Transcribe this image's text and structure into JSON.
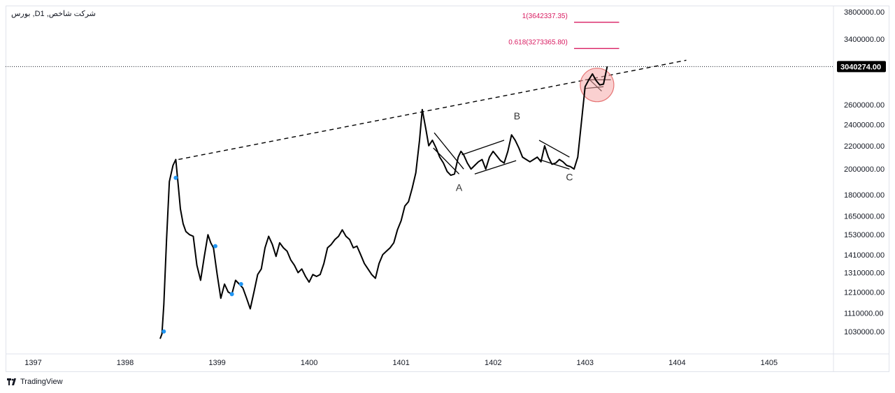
{
  "header": {
    "title": "بورس ,Dشرکت شاخص, 1"
  },
  "footer": {
    "brand": "TradingView",
    "brand_icon": "tradingview-logo-icon"
  },
  "colors": {
    "price_line": "#000000",
    "fib_line": "#d81b60",
    "marker": "#2196f3",
    "highlight_fill": "#f5a9a9",
    "highlight_stroke": "#e57373",
    "grid": "#e0e3eb"
  },
  "chart_data": {
    "type": "line",
    "scale": "log",
    "ylim": [
      940000,
      3900000
    ],
    "xlim": [
      1396.7,
      1405.7
    ],
    "y_ticks": [
      3800000,
      3400000,
      2600000,
      2400000,
      2200000,
      2000000,
      1800000,
      1650000,
      1530000,
      1410000,
      1310000,
      1210000,
      1110000,
      1030000
    ],
    "y_tick_labels": [
      "3800000.00",
      "3400000.00",
      "2600000.00",
      "2400000.00",
      "2200000.00",
      "2000000.00",
      "1800000.00",
      "1650000.00",
      "1530000.00",
      "1410000.00",
      "1310000.00",
      "1210000.00",
      "1110000.00",
      "1030000.00"
    ],
    "x_ticks": [
      1397,
      1398,
      1399,
      1400,
      1401,
      1402,
      1403,
      1404,
      1405
    ],
    "x_tick_labels": [
      "1397",
      "1398",
      "1399",
      "1400",
      "1401",
      "1402",
      "1403",
      "1404",
      "1405"
    ],
    "last_price": {
      "value": 3040274,
      "label": "3040274.00"
    },
    "series": [
      {
        "x": [
          1398.38,
          1398.4,
          1398.42,
          1398.45,
          1398.48,
          1398.52,
          1398.55,
          1398.58,
          1398.6,
          1398.63,
          1398.66,
          1398.7,
          1398.74,
          1398.78,
          1398.82,
          1398.86,
          1398.9,
          1398.93,
          1398.96,
          1399.0,
          1399.04,
          1399.08,
          1399.12,
          1399.16,
          1399.2,
          1399.24,
          1399.28,
          1399.32,
          1399.36,
          1399.4,
          1399.44,
          1399.48,
          1399.52,
          1399.56,
          1399.6,
          1399.64,
          1399.68,
          1399.72,
          1399.76,
          1399.8,
          1399.84,
          1399.88,
          1399.92,
          1399.96,
          1400.0,
          1400.04,
          1400.08,
          1400.12,
          1400.16,
          1400.2,
          1400.24,
          1400.28,
          1400.32,
          1400.36,
          1400.4,
          1400.44,
          1400.48,
          1400.52,
          1400.56,
          1400.6,
          1400.64,
          1400.68,
          1400.72,
          1400.76,
          1400.8,
          1400.84,
          1400.88,
          1400.92,
          1400.96,
          1401.0,
          1401.04,
          1401.08,
          1401.12,
          1401.16,
          1401.2,
          1401.23,
          1401.27,
          1401.3,
          1401.34,
          1401.38,
          1401.42,
          1401.46,
          1401.5,
          1401.54,
          1401.58,
          1401.62,
          1401.65,
          1401.68,
          1401.72,
          1401.76,
          1401.8,
          1401.84,
          1401.88,
          1401.92,
          1401.96,
          1402.0,
          1402.04,
          1402.08,
          1402.12,
          1402.16,
          1402.2,
          1402.24,
          1402.28,
          1402.32,
          1402.36,
          1402.4,
          1402.44,
          1402.48,
          1402.52,
          1402.56,
          1402.6,
          1402.64,
          1402.68,
          1402.72,
          1402.76,
          1402.8,
          1402.84,
          1402.88,
          1402.92,
          1402.96,
          1403.0,
          1403.04,
          1403.08,
          1403.12,
          1403.16,
          1403.2,
          1403.24
        ],
        "y": [
          1000000,
          1020000,
          1150000,
          1500000,
          1900000,
          2030000,
          2080000,
          1850000,
          1700000,
          1600000,
          1550000,
          1530000,
          1520000,
          1350000,
          1270000,
          1400000,
          1530000,
          1480000,
          1450000,
          1300000,
          1180000,
          1250000,
          1210000,
          1200000,
          1270000,
          1250000,
          1230000,
          1180000,
          1130000,
          1210000,
          1300000,
          1330000,
          1450000,
          1520000,
          1470000,
          1400000,
          1480000,
          1450000,
          1430000,
          1380000,
          1350000,
          1310000,
          1330000,
          1290000,
          1260000,
          1300000,
          1290000,
          1300000,
          1360000,
          1450000,
          1470000,
          1500000,
          1520000,
          1560000,
          1520000,
          1500000,
          1450000,
          1460000,
          1410000,
          1360000,
          1330000,
          1300000,
          1280000,
          1360000,
          1410000,
          1430000,
          1450000,
          1480000,
          1560000,
          1620000,
          1720000,
          1750000,
          1850000,
          1970000,
          2250000,
          2550000,
          2350000,
          2200000,
          2250000,
          2180000,
          2100000,
          2050000,
          1980000,
          1950000,
          1960000,
          2100000,
          2150000,
          2120000,
          2050000,
          2000000,
          2030000,
          2060000,
          2080000,
          2000000,
          2100000,
          2150000,
          2110000,
          2070000,
          2050000,
          2150000,
          2300000,
          2250000,
          2180000,
          2100000,
          2080000,
          2060000,
          2080000,
          2100000,
          2060000,
          2200000,
          2100000,
          2040000,
          2050000,
          2080000,
          2060000,
          2030000,
          2020000,
          2000000,
          2100000,
          2420000,
          2800000,
          2880000,
          2950000,
          2870000,
          2820000,
          2830000,
          3040274
        ]
      }
    ],
    "markers": [
      {
        "x": 1398.42,
        "y": 1030000
      },
      {
        "x": 1398.55,
        "y": 1930000
      },
      {
        "x": 1398.98,
        "y": 1460000
      },
      {
        "x": 1399.16,
        "y": 1200000
      },
      {
        "x": 1399.26,
        "y": 1250000
      }
    ],
    "trendline": {
      "x1": 1398.58,
      "y1": 2080000,
      "x2": 1404.1,
      "y2": 3120000
    },
    "fib_levels": [
      {
        "label": "1(3642337.35)",
        "value": 3642337.35
      },
      {
        "label": "0.618(3273365.80)",
        "value": 3273365.8
      }
    ],
    "wave_labels": [
      {
        "text": "A",
        "x": 1401.63,
        "y": 1830000
      },
      {
        "text": "B",
        "x": 1402.26,
        "y": 2450000
      },
      {
        "text": "C",
        "x": 1402.83,
        "y": 1910000
      }
    ]
  }
}
